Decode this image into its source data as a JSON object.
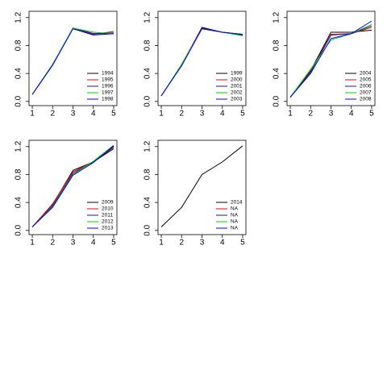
{
  "chart_data": [
    {
      "type": "line",
      "x": [
        1,
        2,
        3,
        4,
        5
      ],
      "xlim": [
        0.84,
        5.16
      ],
      "xticks": [
        1,
        2,
        3,
        4,
        5
      ],
      "ylim": [
        -0.06,
        1.29
      ],
      "yticks": [
        {
          "value": 0,
          "label": "0.0"
        },
        {
          "value": 0.4,
          "label": "0.4"
        },
        {
          "value": 0.8,
          "label": "0.8"
        },
        {
          "value": 1.2,
          "label": "1.2"
        }
      ],
      "series": [
        {
          "name": "1994",
          "color": "#000000",
          "values": [
            0.1,
            0.52,
            1.05,
            0.97,
            0.97
          ]
        },
        {
          "name": "1995",
          "color": "#ff0000",
          "values": [
            0.1,
            0.53,
            1.04,
            0.96,
            1.0
          ]
        },
        {
          "name": "1996",
          "color": "#1c1c7a",
          "values": [
            0.1,
            0.52,
            1.05,
            0.97,
            0.98
          ]
        },
        {
          "name": "1997",
          "color": "#00cd00",
          "values": [
            0.1,
            0.53,
            1.05,
            0.99,
            0.97
          ]
        },
        {
          "name": "1998",
          "color": "#0000ff",
          "values": [
            0.1,
            0.52,
            1.04,
            0.95,
            0.97
          ]
        }
      ]
    },
    {
      "type": "line",
      "x": [
        1,
        2,
        3,
        4,
        5
      ],
      "xlim": [
        0.84,
        5.16
      ],
      "xticks": [
        1,
        2,
        3,
        4,
        5
      ],
      "ylim": [
        -0.06,
        1.29
      ],
      "yticks": [
        {
          "value": 0,
          "label": "0.0"
        },
        {
          "value": 0.4,
          "label": "0.4"
        },
        {
          "value": 0.8,
          "label": "0.8"
        },
        {
          "value": 1.2,
          "label": "1.2"
        }
      ],
      "series": [
        {
          "name": "1999",
          "color": "#000000",
          "values": [
            0.08,
            0.52,
            1.06,
            0.99,
            0.96
          ]
        },
        {
          "name": "2000",
          "color": "#ff0000",
          "values": [
            0.08,
            0.53,
            1.05,
            0.99,
            0.96
          ]
        },
        {
          "name": "2001",
          "color": "#1c1c7a",
          "values": [
            0.08,
            0.52,
            1.05,
            0.99,
            0.95
          ]
        },
        {
          "name": "2002",
          "color": "#00cd00",
          "values": [
            0.08,
            0.53,
            1.04,
            0.99,
            0.94
          ]
        },
        {
          "name": "2003",
          "color": "#0000ff",
          "values": [
            0.08,
            0.51,
            1.04,
            0.99,
            0.96
          ]
        }
      ]
    },
    {
      "type": "line",
      "x": [
        1,
        2,
        3,
        4,
        5
      ],
      "xlim": [
        0.84,
        5.16
      ],
      "xticks": [
        1,
        2,
        3,
        4,
        5
      ],
      "ylim": [
        -0.06,
        1.29
      ],
      "yticks": [
        {
          "value": 0,
          "label": "0.0"
        },
        {
          "value": 0.4,
          "label": "0.4"
        },
        {
          "value": 0.8,
          "label": "0.8"
        },
        {
          "value": 1.2,
          "label": "1.2"
        }
      ],
      "series": [
        {
          "name": "2004",
          "color": "#000000",
          "values": [
            0.06,
            0.44,
            0.99,
            0.99,
            1.02
          ]
        },
        {
          "name": "2005",
          "color": "#ff0000",
          "values": [
            0.06,
            0.43,
            0.96,
            0.97,
            1.06
          ]
        },
        {
          "name": "2006",
          "color": "#1c1c7a",
          "values": [
            0.06,
            0.42,
            0.95,
            0.97,
            1.08
          ]
        },
        {
          "name": "2007",
          "color": "#00cd00",
          "values": [
            0.06,
            0.46,
            0.88,
            0.97,
            1.1
          ]
        },
        {
          "name": "2008",
          "color": "#0000ff",
          "values": [
            0.06,
            0.4,
            0.9,
            0.97,
            1.15
          ]
        }
      ]
    },
    {
      "type": "line",
      "x": [
        1,
        2,
        3,
        4,
        5
      ],
      "xlim": [
        0.84,
        5.16
      ],
      "xticks": [
        1,
        2,
        3,
        4,
        5
      ],
      "ylim": [
        -0.06,
        1.29
      ],
      "yticks": [
        {
          "value": 0,
          "label": "0.0"
        },
        {
          "value": 0.4,
          "label": "0.4"
        },
        {
          "value": 0.8,
          "label": "0.8"
        },
        {
          "value": 1.2,
          "label": "1.2"
        }
      ],
      "series": [
        {
          "name": "2009",
          "color": "#000000",
          "values": [
            0.05,
            0.37,
            0.86,
            0.98,
            1.17
          ]
        },
        {
          "name": "2010",
          "color": "#ff0000",
          "values": [
            0.05,
            0.38,
            0.84,
            0.98,
            1.19
          ]
        },
        {
          "name": "2011",
          "color": "#1c1c7a",
          "values": [
            0.05,
            0.35,
            0.82,
            0.98,
            1.2
          ]
        },
        {
          "name": "2012",
          "color": "#00cd00",
          "values": [
            0.05,
            0.34,
            0.8,
            0.99,
            1.22
          ]
        },
        {
          "name": "2013",
          "color": "#0000ff",
          "values": [
            0.05,
            0.33,
            0.79,
            0.97,
            1.21
          ]
        }
      ]
    },
    {
      "type": "line",
      "x": [
        1,
        2,
        3,
        4,
        5
      ],
      "xlim": [
        0.84,
        5.16
      ],
      "xticks": [
        1,
        2,
        3,
        4,
        5
      ],
      "ylim": [
        -0.06,
        1.29
      ],
      "yticks": [
        {
          "value": 0,
          "label": "0.0"
        },
        {
          "value": 0.4,
          "label": "0.4"
        },
        {
          "value": 0.8,
          "label": "0.8"
        },
        {
          "value": 1.2,
          "label": "1.2"
        }
      ],
      "series": [
        {
          "name": "2014",
          "color": "#000000",
          "values": [
            0.05,
            0.33,
            0.8,
            0.98,
            1.21
          ]
        },
        {
          "name": "NA",
          "color": "#ff0000",
          "values": [
            null,
            null,
            null,
            null,
            null
          ]
        },
        {
          "name": "NA",
          "color": "#1c1c7a",
          "values": [
            null,
            null,
            null,
            null,
            null
          ]
        },
        {
          "name": "NA",
          "color": "#00cd00",
          "values": [
            null,
            null,
            null,
            null,
            null
          ]
        },
        {
          "name": "NA",
          "color": "#0000ff",
          "values": [
            null,
            null,
            null,
            null,
            null
          ]
        }
      ]
    }
  ]
}
